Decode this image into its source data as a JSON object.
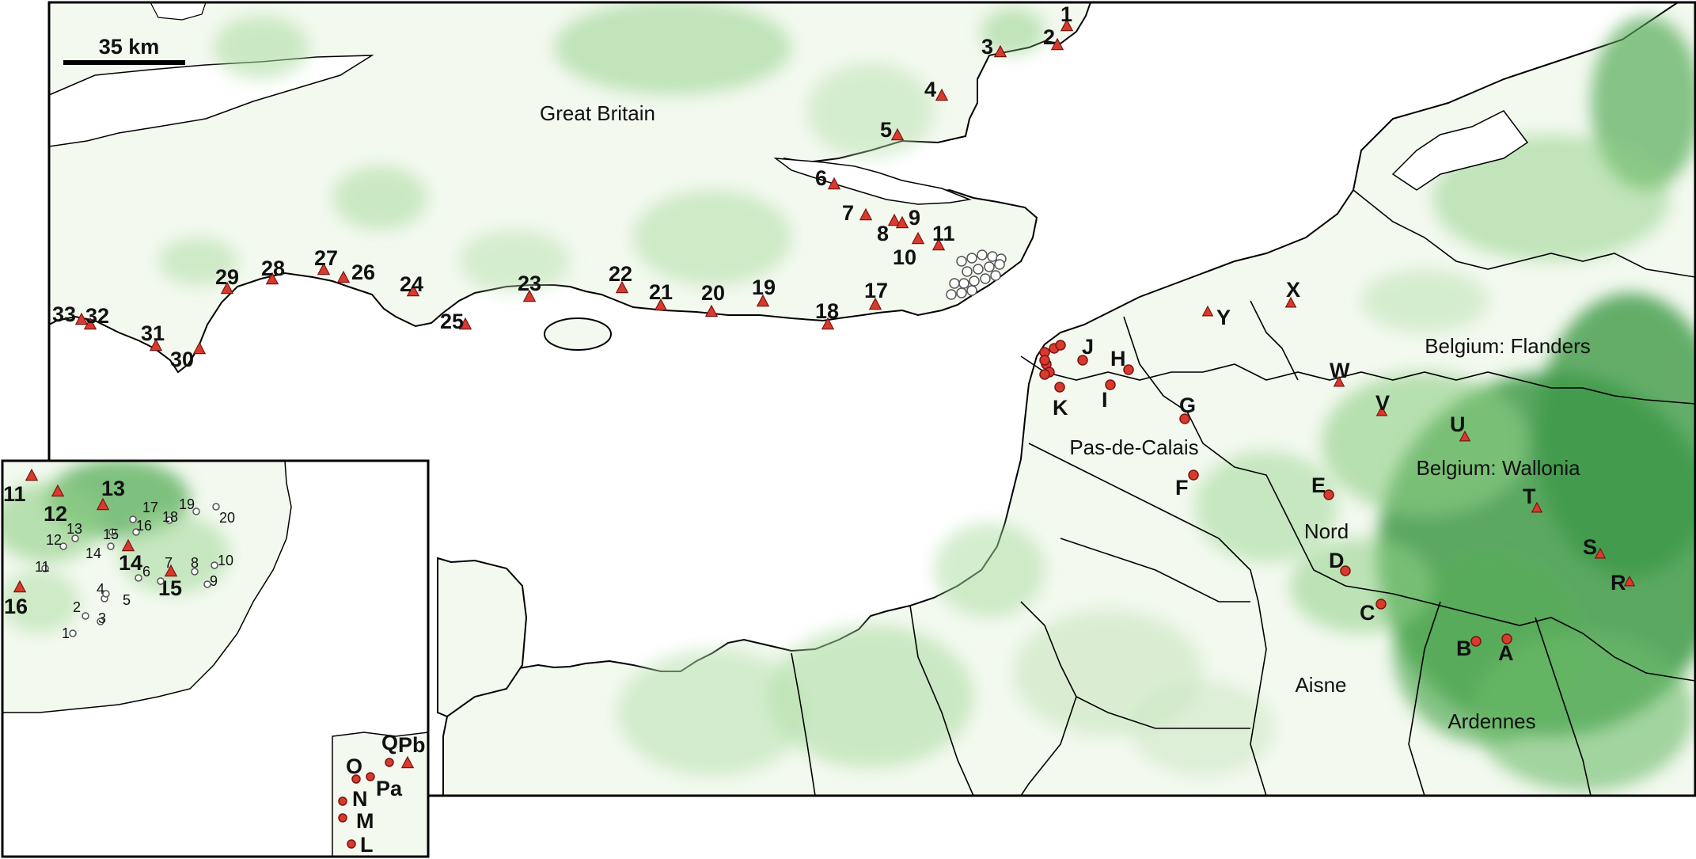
{
  "scale_bar": {
    "label": "35 km"
  },
  "regions": {
    "great_britain": "Great Britain",
    "flanders": "Belgium: Flanders",
    "wallonia": "Belgium: Wallonia",
    "pas_de_calais": "Pas-de-Calais",
    "nord": "Nord",
    "aisne": "Aisne",
    "ardennes": "Ardennes"
  },
  "colors": {
    "land": "#f3f9ef",
    "green_light": "#cfe8c6",
    "green_mid": "#8fcf86",
    "green_dark": "#3f9a48",
    "border": "#000000",
    "marker_fill": "#d83a2e",
    "marker_stroke": "#7a1410",
    "open_circle": "#ffffff"
  },
  "markers": {
    "uk_triangles": [
      "1",
      "2",
      "3",
      "4",
      "5",
      "6",
      "7",
      "8",
      "9",
      "10",
      "11",
      "17",
      "18",
      "19",
      "20",
      "21",
      "22",
      "23",
      "24",
      "25",
      "26",
      "27",
      "28",
      "29",
      "30",
      "31",
      "32",
      "33"
    ],
    "continent_triangles": [
      "R",
      "S",
      "T",
      "U",
      "V",
      "W",
      "X",
      "Y"
    ],
    "continent_circles": [
      "A",
      "B",
      "C",
      "D",
      "E",
      "F",
      "G",
      "H",
      "I",
      "J",
      "K"
    ]
  },
  "inset": {
    "big_triangles": [
      "11",
      "12",
      "13",
      "14",
      "15",
      "16"
    ],
    "small_circles": [
      "1",
      "2",
      "3",
      "4",
      "5",
      "6",
      "7",
      "8",
      "9",
      "10",
      "11",
      "12",
      "13",
      "14",
      "15",
      "16",
      "17",
      "18",
      "19",
      "20"
    ],
    "coast_sites": [
      "L",
      "M",
      "N",
      "O",
      "Pa",
      "Pb",
      "Q"
    ]
  }
}
